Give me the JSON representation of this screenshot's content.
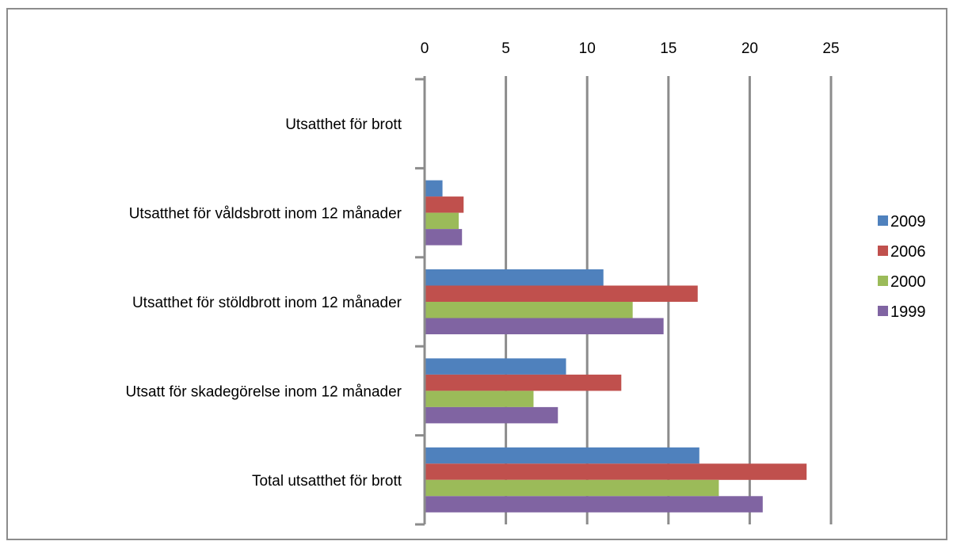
{
  "chart_data": {
    "type": "bar",
    "orientation": "horizontal",
    "title": "",
    "xlabel": "",
    "ylabel": "",
    "xlim": [
      0,
      25
    ],
    "x_ticks": [
      "0",
      "5",
      "10",
      "15",
      "20",
      "25"
    ],
    "x_axis_position": "top",
    "grid": "vertical",
    "legend_position": "right",
    "categories": [
      "Utsatthet  för brott",
      "Utsatthet  för våldsbrott  inom 12 månader",
      "Utsatthet  för stöldbrott  inom 12 månader",
      "Utsatt  för skadegörelse inom 12 månader",
      "Total utsatthet  för brott"
    ],
    "series": [
      {
        "name": "2009",
        "color": "#4F81BD",
        "values": [
          null,
          1.1,
          11.0,
          8.7,
          16.9
        ]
      },
      {
        "name": "2006",
        "color": "#C0504D",
        "values": [
          null,
          2.4,
          16.8,
          12.1,
          23.5
        ]
      },
      {
        "name": "2000",
        "color": "#9BBB59",
        "values": [
          null,
          2.1,
          12.8,
          6.7,
          18.1
        ]
      },
      {
        "name": "1999",
        "color": "#8064A2",
        "values": [
          null,
          2.3,
          14.7,
          8.2,
          20.8
        ]
      }
    ]
  }
}
